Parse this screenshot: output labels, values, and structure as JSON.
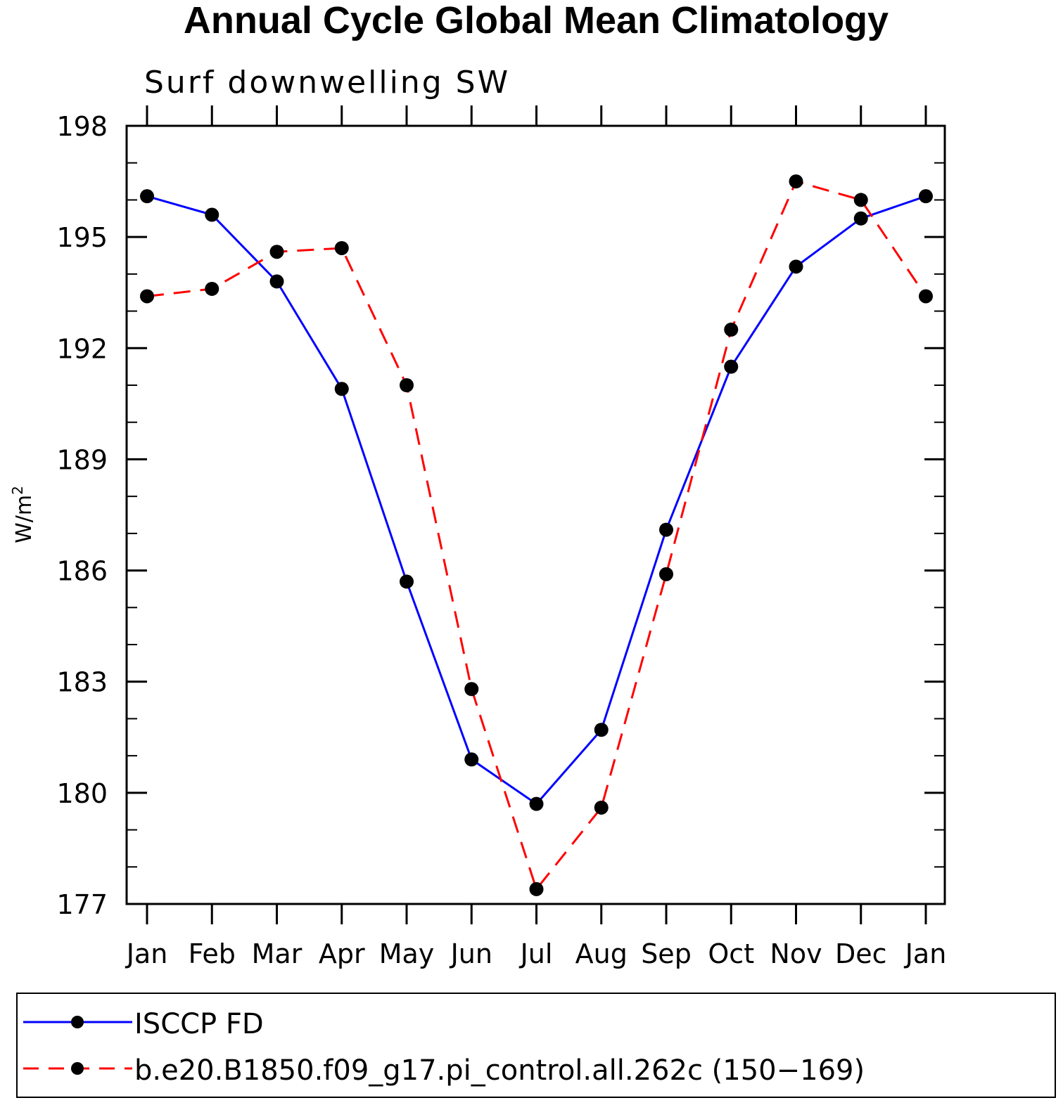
{
  "chart_data": {
    "type": "line",
    "title": "Annual Cycle Global Mean Climatology",
    "subtitle": "Surf downwelling SW",
    "ylabel": "W/m",
    "ylabel_sup": "2",
    "xlabel": "",
    "categories": [
      "Jan",
      "Feb",
      "Mar",
      "Apr",
      "May",
      "Jun",
      "Jul",
      "Aug",
      "Sep",
      "Oct",
      "Nov",
      "Dec",
      "Jan"
    ],
    "ylim": [
      177,
      198
    ],
    "yticks": [
      177,
      180,
      183,
      186,
      189,
      192,
      195,
      198
    ],
    "series": [
      {
        "name": "ISCCP FD",
        "color": "#0000ff",
        "dash": "solid",
        "marker": "filled-circle",
        "values": [
          196.1,
          195.6,
          193.8,
          190.9,
          185.7,
          180.9,
          179.7,
          181.7,
          187.1,
          191.5,
          194.2,
          195.5,
          196.1
        ]
      },
      {
        "name": "b.e20.B1850.f09_g17.pi_control.all.262c (150−169)",
        "color": "#ff0000",
        "dash": "dashed",
        "marker": "filled-circle",
        "values": [
          193.4,
          193.6,
          194.6,
          194.7,
          191.0,
          182.8,
          177.4,
          179.6,
          185.9,
          192.5,
          196.5,
          196.0,
          193.4
        ]
      }
    ],
    "grid": false,
    "legend_position": "bottom"
  }
}
